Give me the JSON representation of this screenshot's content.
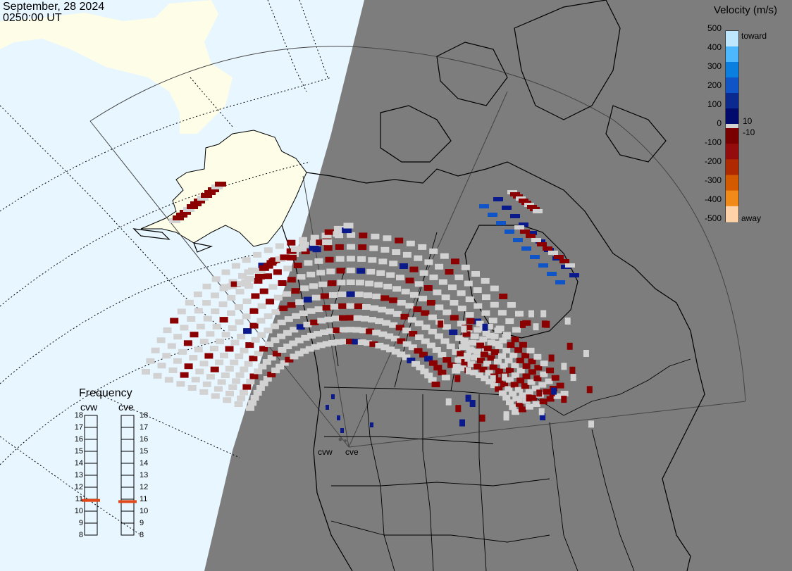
{
  "header": {
    "date": "September, 28 2024",
    "time": "0250:00 UT"
  },
  "colorbar": {
    "title": "Velocity (m/s)",
    "ticks": [
      "500",
      "400",
      "300",
      "200",
      "100",
      "0",
      "-100",
      "-200",
      "-300",
      "-400",
      "-500"
    ],
    "inner_ticks": [
      "10",
      "-10"
    ],
    "toward_label": "toward",
    "away_label": "away",
    "colors": {
      "toward": [
        "#bfe6ff",
        "#4db8ff",
        "#0a7fe0",
        "#1055c8",
        "#0b2a8f",
        "#000b6b"
      ],
      "away": [
        "#7a0000",
        "#950c0c",
        "#b02a00",
        "#d45a00",
        "#f28a1a",
        "#ffd2a8"
      ]
    }
  },
  "frequency": {
    "title": "Frequency",
    "radars": [
      "cvw",
      "cve"
    ],
    "scale": [
      "18",
      "17",
      "16",
      "15",
      "14",
      "13",
      "12",
      "11",
      "10",
      "9",
      "8"
    ],
    "cvw_mhz": 10.9,
    "cve_mhz": 10.8,
    "marker_color": "#e04a1a"
  },
  "sites": {
    "cvw": "cvw",
    "cve": "cve"
  },
  "map": {
    "colors": {
      "ocean": "#e8f6ff",
      "land_day": "#fdfde8",
      "night": "#7d7d7d",
      "ground_scatter": "#d2d2d2",
      "dark_red": "#8b0000",
      "navy": "#0b1a8a"
    }
  }
}
